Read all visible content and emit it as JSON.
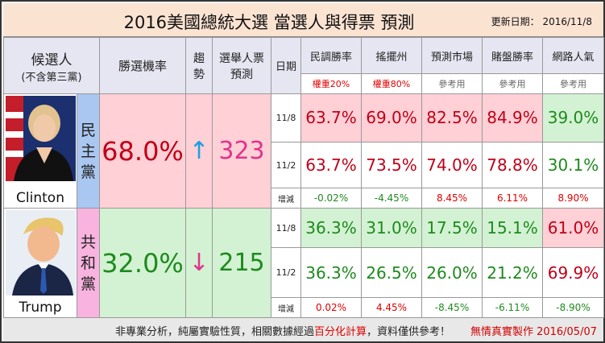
{
  "title": "2016美國總統大選 當選人與得票 預測",
  "update_label": "更新日期： 2016/11/8",
  "header": {
    "candidate": "候選人",
    "candidate_sub": "(不含第三黨)",
    "win_prob": "勝選機率",
    "trend": "趨勢",
    "electoral": "選舉人票預測",
    "date": "日期",
    "columns": [
      "民調勝率",
      "搖擺州",
      "預測市場",
      "賭盤勝率",
      "網路人氣"
    ],
    "weights": [
      "權重20%",
      "權重80%",
      "參考用",
      "參考用",
      "參考用"
    ]
  },
  "clinton": {
    "name": "Clinton",
    "party_chars": [
      "民",
      "主",
      "黨"
    ],
    "prob": "68.0%",
    "trend": "↑",
    "electoral": "323",
    "d1": "11/8",
    "r1": [
      "63.7%",
      "69.0%",
      "82.5%",
      "84.9%",
      "39.0%"
    ],
    "d2": "11/2",
    "r2": [
      "63.7%",
      "73.5%",
      "74.0%",
      "78.8%",
      "30.1%"
    ],
    "change_label": "增減",
    "changes": [
      "-0.02%",
      "-4.45%",
      "8.45%",
      "6.11%",
      "8.90%"
    ]
  },
  "trump": {
    "name": "Trump",
    "party_chars": [
      "共",
      "和",
      "黨"
    ],
    "prob": "32.0%",
    "trend": "↓",
    "electoral": "215",
    "d1": "11/8",
    "r1": [
      "36.3%",
      "31.0%",
      "17.5%",
      "15.1%",
      "61.0%"
    ],
    "d2": "11/2",
    "r2": [
      "36.3%",
      "26.5%",
      "26.0%",
      "21.2%",
      "69.9%"
    ],
    "change_label": "增減",
    "changes": [
      "0.02%",
      "4.45%",
      "-8.45%",
      "-6.11%",
      "-8.90%"
    ]
  },
  "footer": {
    "note_a": "非專業分析，純屬實驗性質，相關數據經過",
    "note_hl": "百分化計算",
    "note_b": "，資料僅供參考！",
    "credit": "無情真實製作 2016/05/07"
  },
  "colors": {
    "red": "#c00018",
    "green": "#1e8a1e",
    "blue_arrow": "#1aa0e0",
    "pink_text": "#e0348c",
    "clinton_bg": "#ffd0d6",
    "trump_bg": "#d3f2d3"
  }
}
